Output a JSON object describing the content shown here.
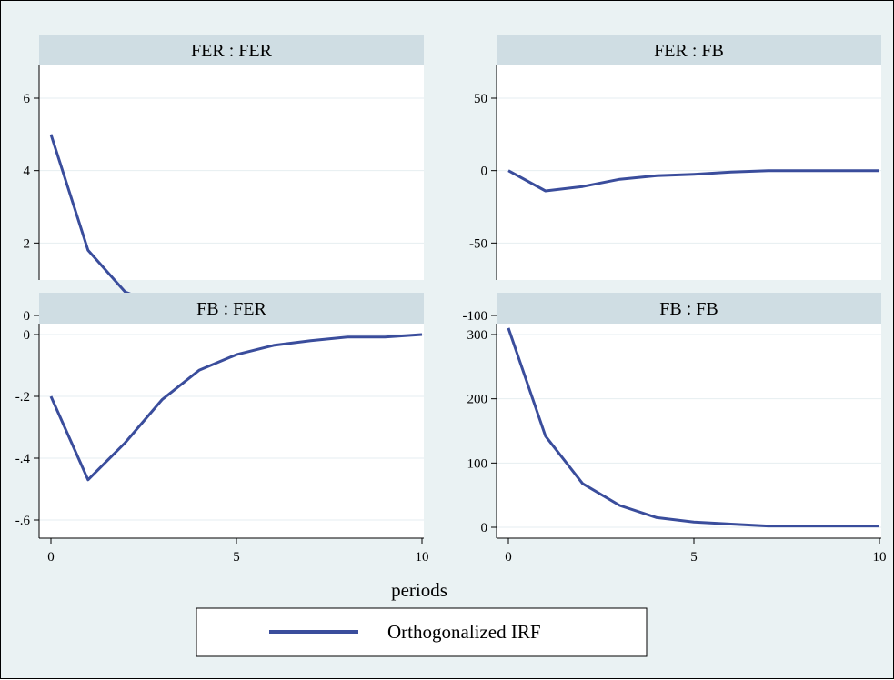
{
  "chart_data": {
    "type": "line",
    "xlabel": "periods",
    "legend": {
      "placement": "bottom-center",
      "entries": [
        "Orthogonalized IRF"
      ]
    },
    "series_color": "#3a4d9c",
    "grid": true,
    "x": [
      0,
      1,
      2,
      3,
      4,
      5,
      6,
      7,
      8,
      9,
      10
    ],
    "xticks": [
      "0",
      "5",
      "10"
    ],
    "xlim": [
      0,
      10
    ],
    "panels": [
      {
        "title": "FER : FER",
        "ylim": [
          -0.3,
          6.3
        ],
        "yticks": [
          0,
          2,
          4,
          6
        ],
        "ytick_labels": [
          "0",
          "2",
          "4",
          "6"
        ],
        "series": [
          {
            "name": "Orthogonalized IRF",
            "values": [
              5.0,
              1.8,
              0.65,
              0.25,
              0.1,
              0.05,
              0.05,
              0.0,
              0.0,
              0.0,
              0.0
            ]
          }
        ]
      },
      {
        "title": "FER : FB",
        "ylim": [
          -105,
          55
        ],
        "yticks": [
          -100,
          -50,
          0,
          50
        ],
        "ytick_labels": [
          "-100",
          "-50",
          "0",
          "50"
        ],
        "series": [
          {
            "name": "Orthogonalized IRF",
            "values": [
              0,
              -14,
              -11,
              -6,
              -3.5,
              -2.5,
              -1,
              0,
              0,
              0,
              0
            ]
          }
        ]
      },
      {
        "title": "FB : FER",
        "ylim": [
          -0.65,
          0.03
        ],
        "yticks": [
          -0.6,
          -0.4,
          -0.2,
          0
        ],
        "ytick_labels": [
          "-.6",
          "-.4",
          "-.2",
          "0"
        ],
        "series": [
          {
            "name": "Orthogonalized IRF",
            "values": [
              -0.2,
              -0.47,
              -0.35,
              -0.21,
              -0.115,
              -0.065,
              -0.035,
              -0.02,
              -0.008,
              -0.008,
              0.0
            ]
          }
        ]
      },
      {
        "title": "FB : FB",
        "ylim": [
          -15,
          330
        ],
        "yticks": [
          0,
          100,
          200,
          300
        ],
        "ytick_labels": [
          "0",
          "100",
          "200",
          "300"
        ],
        "series": [
          {
            "name": "Orthogonalized IRF",
            "values": [
              310,
              142,
              68,
              34,
              15,
              8,
              5,
              2,
              2,
              2,
              2
            ]
          }
        ]
      }
    ]
  }
}
